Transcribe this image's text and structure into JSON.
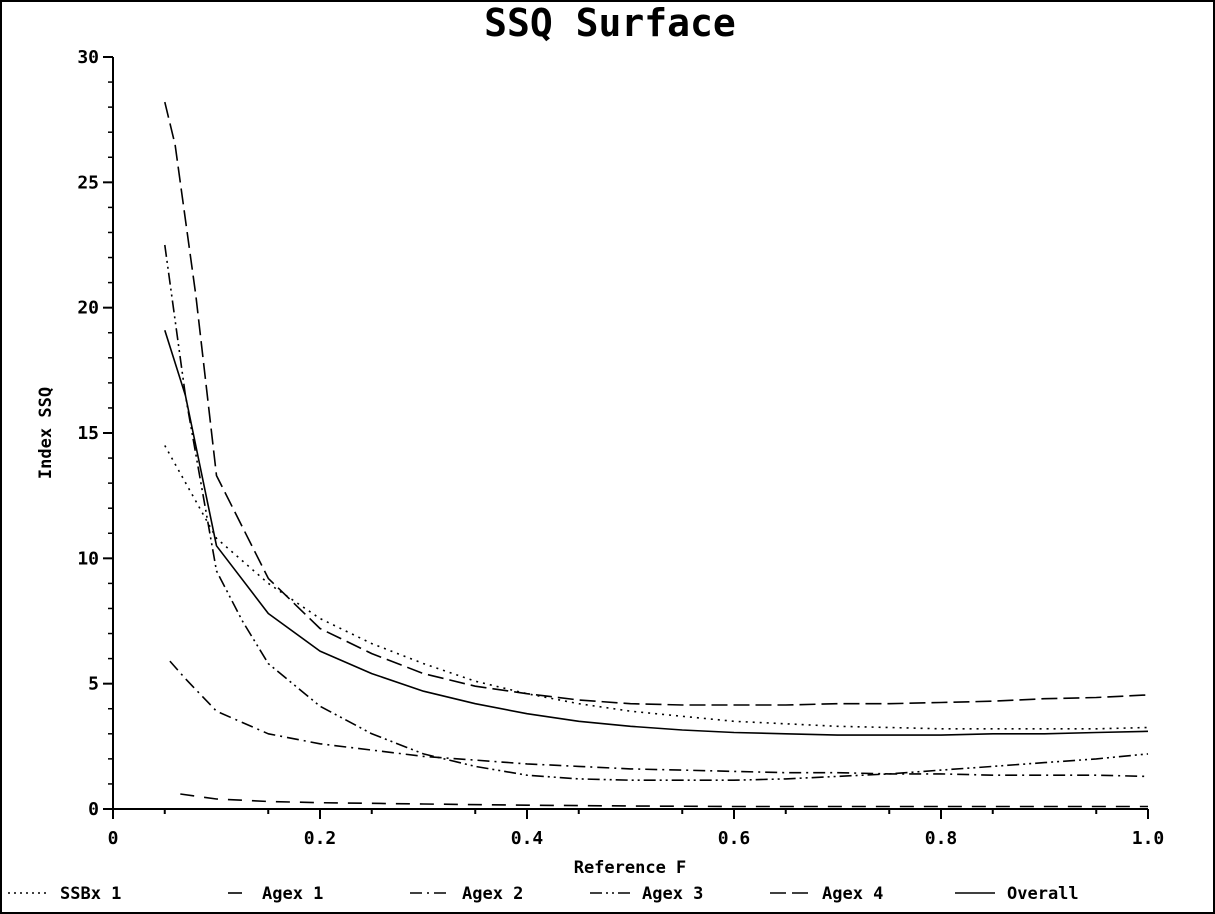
{
  "chart_data": {
    "type": "line",
    "title": "SSQ Surface",
    "xlabel": "Reference F",
    "ylabel": "Index SSQ",
    "xlim": [
      0,
      1.0
    ],
    "ylim": [
      0,
      30
    ],
    "x_ticks": [
      "0",
      "0.2",
      "0.4",
      "0.6",
      "0.8",
      "1.0"
    ],
    "y_ticks": [
      "0",
      "5",
      "10",
      "15",
      "20",
      "25",
      "30"
    ],
    "grid": false,
    "legend_position": "bottom",
    "series": [
      {
        "name": "SSBx 1",
        "dash": "dotted",
        "points": [
          [
            0.05,
            14.5
          ],
          [
            0.1,
            10.8
          ],
          [
            0.15,
            9.0
          ],
          [
            0.2,
            7.6
          ],
          [
            0.25,
            6.6
          ],
          [
            0.3,
            5.8
          ],
          [
            0.35,
            5.1
          ],
          [
            0.4,
            4.6
          ],
          [
            0.45,
            4.2
          ],
          [
            0.5,
            3.9
          ],
          [
            0.55,
            3.7
          ],
          [
            0.6,
            3.5
          ],
          [
            0.65,
            3.4
          ],
          [
            0.7,
            3.3
          ],
          [
            0.75,
            3.25
          ],
          [
            0.8,
            3.2
          ],
          [
            0.85,
            3.2
          ],
          [
            0.9,
            3.2
          ],
          [
            0.95,
            3.2
          ],
          [
            1.0,
            3.25
          ]
        ]
      },
      {
        "name": "Agex 1",
        "dash": "long-dash",
        "points": [
          [
            0.065,
            0.6
          ],
          [
            0.1,
            0.4
          ],
          [
            0.15,
            0.3
          ],
          [
            0.2,
            0.25
          ],
          [
            0.3,
            0.2
          ],
          [
            0.4,
            0.15
          ],
          [
            0.5,
            0.12
          ],
          [
            0.6,
            0.1
          ],
          [
            0.7,
            0.1
          ],
          [
            0.8,
            0.1
          ],
          [
            0.9,
            0.1
          ],
          [
            1.0,
            0.1
          ]
        ]
      },
      {
        "name": "Agex 2",
        "dash": "dash-dot",
        "points": [
          [
            0.055,
            5.9
          ],
          [
            0.07,
            5.2
          ],
          [
            0.1,
            3.9
          ],
          [
            0.15,
            3.0
          ],
          [
            0.2,
            2.6
          ],
          [
            0.25,
            2.35
          ],
          [
            0.3,
            2.1
          ],
          [
            0.35,
            1.95
          ],
          [
            0.4,
            1.8
          ],
          [
            0.45,
            1.7
          ],
          [
            0.5,
            1.6
          ],
          [
            0.55,
            1.55
          ],
          [
            0.6,
            1.5
          ],
          [
            0.65,
            1.45
          ],
          [
            0.7,
            1.45
          ],
          [
            0.75,
            1.4
          ],
          [
            0.8,
            1.4
          ],
          [
            0.85,
            1.35
          ],
          [
            0.9,
            1.35
          ],
          [
            0.95,
            1.35
          ],
          [
            1.0,
            1.3
          ]
        ]
      },
      {
        "name": "Agex 3",
        "dash": "dash-dot-dot",
        "points": [
          [
            0.05,
            22.5
          ],
          [
            0.07,
            16.5
          ],
          [
            0.1,
            9.5
          ],
          [
            0.125,
            7.5
          ],
          [
            0.15,
            5.8
          ],
          [
            0.2,
            4.1
          ],
          [
            0.25,
            3.0
          ],
          [
            0.3,
            2.2
          ],
          [
            0.35,
            1.7
          ],
          [
            0.4,
            1.35
          ],
          [
            0.45,
            1.2
          ],
          [
            0.5,
            1.15
          ],
          [
            0.55,
            1.15
          ],
          [
            0.6,
            1.15
          ],
          [
            0.65,
            1.2
          ],
          [
            0.7,
            1.3
          ],
          [
            0.75,
            1.4
          ],
          [
            0.8,
            1.55
          ],
          [
            0.85,
            1.7
          ],
          [
            0.9,
            1.85
          ],
          [
            0.95,
            2.0
          ],
          [
            1.0,
            2.2
          ]
        ]
      },
      {
        "name": "Agex 4",
        "dash": "dashed",
        "points": [
          [
            0.05,
            28.2
          ],
          [
            0.06,
            26.5
          ],
          [
            0.08,
            20.5
          ],
          [
            0.1,
            13.3
          ],
          [
            0.15,
            9.2
          ],
          [
            0.2,
            7.2
          ],
          [
            0.25,
            6.2
          ],
          [
            0.3,
            5.4
          ],
          [
            0.35,
            4.9
          ],
          [
            0.4,
            4.6
          ],
          [
            0.45,
            4.35
          ],
          [
            0.5,
            4.2
          ],
          [
            0.55,
            4.15
          ],
          [
            0.6,
            4.15
          ],
          [
            0.65,
            4.15
          ],
          [
            0.7,
            4.2
          ],
          [
            0.75,
            4.2
          ],
          [
            0.8,
            4.25
          ],
          [
            0.85,
            4.3
          ],
          [
            0.9,
            4.4
          ],
          [
            0.95,
            4.45
          ],
          [
            1.0,
            4.55
          ]
        ]
      },
      {
        "name": "Overall",
        "dash": "solid",
        "points": [
          [
            0.05,
            19.1
          ],
          [
            0.07,
            16.5
          ],
          [
            0.1,
            10.5
          ],
          [
            0.15,
            7.8
          ],
          [
            0.2,
            6.3
          ],
          [
            0.25,
            5.4
          ],
          [
            0.3,
            4.7
          ],
          [
            0.35,
            4.2
          ],
          [
            0.4,
            3.8
          ],
          [
            0.45,
            3.5
          ],
          [
            0.5,
            3.3
          ],
          [
            0.55,
            3.15
          ],
          [
            0.6,
            3.05
          ],
          [
            0.65,
            3.0
          ],
          [
            0.7,
            2.95
          ],
          [
            0.75,
            2.95
          ],
          [
            0.8,
            2.95
          ],
          [
            0.85,
            3.0
          ],
          [
            0.9,
            3.0
          ],
          [
            0.95,
            3.05
          ],
          [
            1.0,
            3.1
          ]
        ]
      }
    ]
  }
}
